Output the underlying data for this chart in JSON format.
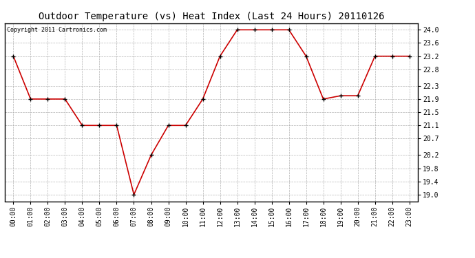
{
  "title": "Outdoor Temperature (vs) Heat Index (Last 24 Hours) 20110126",
  "copyright_text": "Copyright 2011 Cartronics.com",
  "x_labels": [
    "00:00",
    "01:00",
    "02:00",
    "03:00",
    "04:00",
    "05:00",
    "06:00",
    "07:00",
    "08:00",
    "09:00",
    "10:00",
    "11:00",
    "12:00",
    "13:00",
    "14:00",
    "15:00",
    "16:00",
    "17:00",
    "18:00",
    "19:00",
    "20:00",
    "21:00",
    "22:00",
    "23:00"
  ],
  "y_values": [
    23.2,
    21.9,
    21.9,
    21.9,
    21.1,
    21.1,
    21.1,
    19.0,
    20.2,
    21.1,
    21.1,
    21.9,
    23.2,
    24.0,
    24.0,
    24.0,
    24.0,
    23.2,
    21.9,
    22.0,
    22.0,
    23.2,
    23.2,
    23.2
  ],
  "line_color": "#cc0000",
  "marker": "+",
  "marker_color": "#000000",
  "marker_size": 5,
  "background_color": "#ffffff",
  "plot_bg_color": "#ffffff",
  "grid_color": "#aaaaaa",
  "ylim": [
    18.8,
    24.2
  ],
  "yticks": [
    19.0,
    19.4,
    19.8,
    20.2,
    20.7,
    21.1,
    21.5,
    21.9,
    22.3,
    22.8,
    23.2,
    23.6,
    24.0
  ],
  "title_fontsize": 10,
  "copyright_fontsize": 6,
  "tick_fontsize": 7,
  "border_color": "#000000"
}
